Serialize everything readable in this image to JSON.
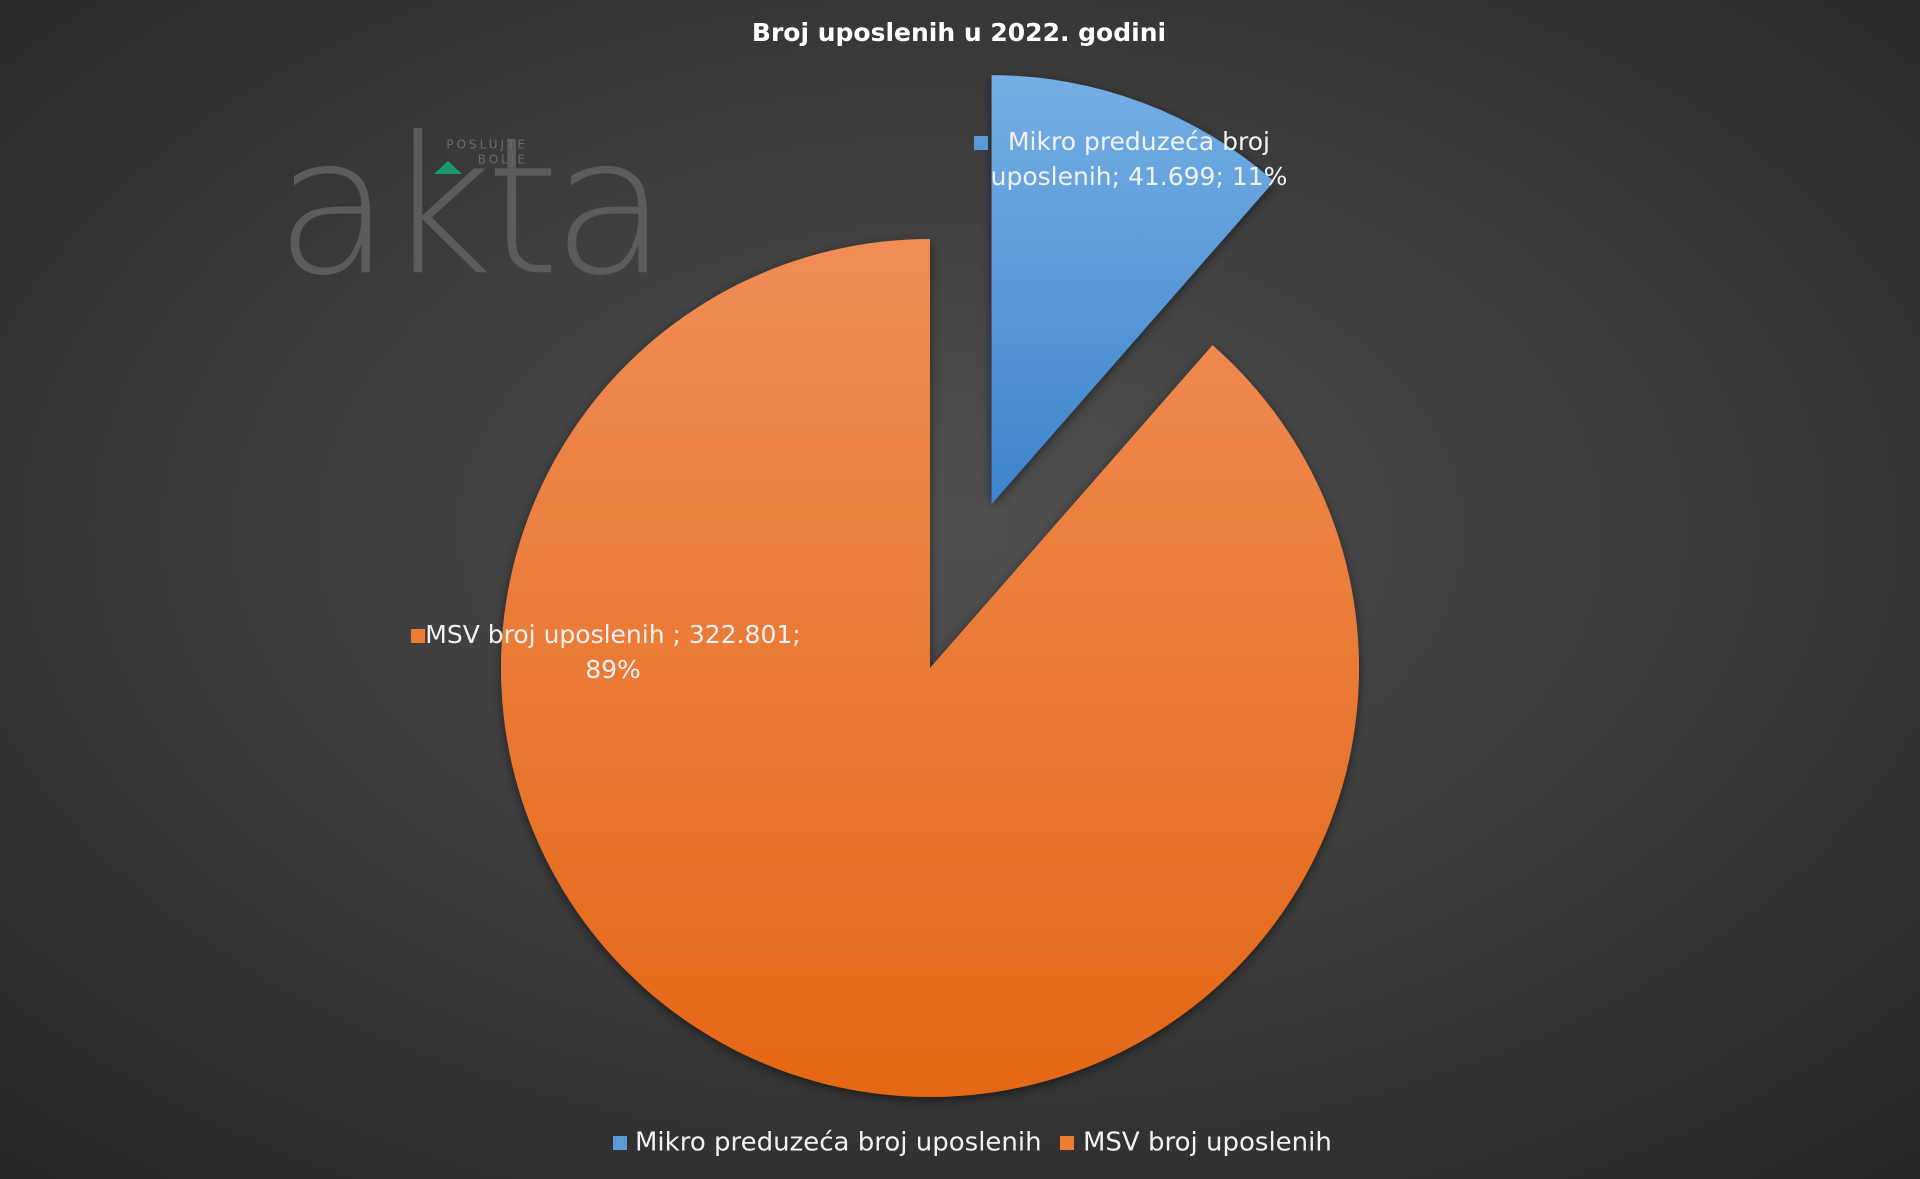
{
  "chart_data": {
    "type": "pie",
    "title": "Broj uposlenih u 2022. godini",
    "categories": [
      "Mikro preduzeća broj uposlenih",
      "MSV broj uposlenih"
    ],
    "values": [
      41699,
      322801
    ],
    "colors": [
      "#5b9bd5",
      "#ed7d31"
    ],
    "data_labels": [
      [
        "Mikro preduzeća broj",
        "uposlenih; 41.699; 11%"
      ],
      [
        "MSV broj uposlenih ; 322.801;",
        "89%"
      ]
    ],
    "exploded": [
      true,
      false
    ],
    "legend": "bottom"
  },
  "watermark": {
    "logo": "akta",
    "tagline": [
      "POSLUJTE",
      "BOLJE"
    ]
  }
}
